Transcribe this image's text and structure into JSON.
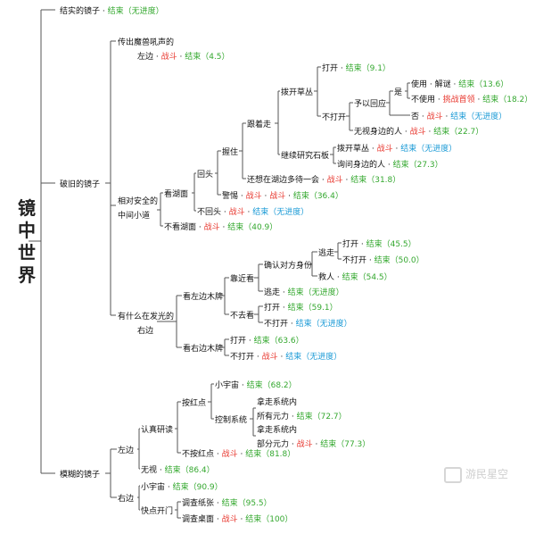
{
  "colors": {
    "neutral": "#111111",
    "fight": "#e8382f",
    "end": "#34a82f",
    "noprog": "#1a9ad6",
    "line": "#555555"
  },
  "icons": {
    "watermark": "logo-mark"
  },
  "map": {
    "root": "镜中世界",
    "watermark": "游民星空",
    "nodes": [
      {
        "id": "n1",
        "label": "结实的镜子",
        "tail": [
          [
            "end",
            "结束（无进度）"
          ]
        ]
      },
      {
        "id": "n2",
        "label": "破旧的镜子"
      },
      {
        "id": "n3",
        "label": "模糊的镜子"
      },
      {
        "id": "n4",
        "label": "传出魔兽吼声的"
      },
      {
        "id": "n4b",
        "label": "左边",
        "tail": [
          [
            "fight",
            "战斗"
          ],
          [
            "end",
            "结束（4.5）"
          ]
        ]
      },
      {
        "id": "n5a",
        "label": "相对安全的"
      },
      {
        "id": "n5b",
        "label": "中间小道"
      },
      {
        "id": "n6a",
        "label": "有什么在发光的"
      },
      {
        "id": "n6b",
        "label": "右边"
      },
      {
        "id": "n7",
        "label": "看湖面"
      },
      {
        "id": "n8",
        "label": "不看湖面",
        "tail": [
          [
            "fight",
            "战斗"
          ],
          [
            "end",
            "结束（40.9）"
          ]
        ]
      },
      {
        "id": "n9",
        "label": "回头"
      },
      {
        "id": "n10",
        "label": "不回头",
        "tail": [
          [
            "fight",
            "战斗"
          ],
          [
            "noprog",
            "结束（无进度）"
          ]
        ]
      },
      {
        "id": "n11",
        "label": "握住"
      },
      {
        "id": "n12",
        "label": "警惕",
        "tail": [
          [
            "fight",
            "战斗"
          ],
          [
            "fight",
            "战斗"
          ],
          [
            "end",
            "结束（36.4）"
          ]
        ]
      },
      {
        "id": "n13",
        "label": "跟着走"
      },
      {
        "id": "n14",
        "label": "还想在湖边多待一会",
        "tail": [
          [
            "fight",
            "战斗"
          ],
          [
            "end",
            "结束（31.8）"
          ]
        ]
      },
      {
        "id": "n15",
        "label": "拨开草丛"
      },
      {
        "id": "n16",
        "label": "继续研究石板"
      },
      {
        "id": "n17",
        "label": "打开",
        "tail": [
          [
            "end",
            "结束（9.1）"
          ]
        ]
      },
      {
        "id": "n18",
        "label": "不打开"
      },
      {
        "id": "n19",
        "label": "予以回应"
      },
      {
        "id": "n20",
        "label": "无视身边的人",
        "tail": [
          [
            "fight",
            "战斗"
          ],
          [
            "end",
            "结束（22.7）"
          ]
        ]
      },
      {
        "id": "n21",
        "label": "是"
      },
      {
        "id": "n22",
        "label": "否",
        "tail": [
          [
            "fight",
            "战斗"
          ],
          [
            "noprog",
            "结束（无进度）"
          ]
        ]
      },
      {
        "id": "n23",
        "label": "使用",
        "tail": [
          [
            "neutral",
            "解谜"
          ],
          [
            "end",
            "结束（13.6）"
          ]
        ]
      },
      {
        "id": "n24",
        "label": "不使用",
        "tail": [
          [
            "fight",
            "挑战首领"
          ],
          [
            "end",
            "结束（18.2）"
          ]
        ]
      },
      {
        "id": "n25",
        "label": "拨开草丛",
        "tail": [
          [
            "fight",
            "战斗"
          ],
          [
            "noprog",
            "结束（无进度）"
          ]
        ]
      },
      {
        "id": "n26",
        "label": "询问身边的人",
        "tail": [
          [
            "end",
            "结束（27.3）"
          ]
        ]
      },
      {
        "id": "n27",
        "label": "看左边木牌"
      },
      {
        "id": "n28",
        "label": "看右边木牌"
      },
      {
        "id": "n29",
        "label": "靠近看"
      },
      {
        "id": "n30",
        "label": "不去看"
      },
      {
        "id": "n31",
        "label": "确认对方身份"
      },
      {
        "id": "n32",
        "label": "逃走",
        "tail": [
          [
            "end",
            "结束（无进度）"
          ]
        ]
      },
      {
        "id": "n33",
        "label": "逃走"
      },
      {
        "id": "n34",
        "label": "救人",
        "tail": [
          [
            "end",
            "结束（54.5）"
          ]
        ]
      },
      {
        "id": "n35",
        "label": "打开",
        "tail": [
          [
            "end",
            "结束（45.5）"
          ]
        ]
      },
      {
        "id": "n36",
        "label": "不打开",
        "tail": [
          [
            "end",
            "结束（50.0）"
          ]
        ]
      },
      {
        "id": "n37",
        "label": "打开",
        "tail": [
          [
            "end",
            "结束（59.1）"
          ]
        ]
      },
      {
        "id": "n38",
        "label": "不打开",
        "tail": [
          [
            "noprog",
            "结束（无进度）"
          ]
        ]
      },
      {
        "id": "n39",
        "label": "打开",
        "tail": [
          [
            "end",
            "结束（63.6）"
          ]
        ]
      },
      {
        "id": "n40",
        "label": "不打开",
        "tail": [
          [
            "fight",
            "战斗"
          ],
          [
            "noprog",
            "结束（无进度）"
          ]
        ]
      },
      {
        "id": "n41",
        "label": "左边"
      },
      {
        "id": "n42",
        "label": "右边"
      },
      {
        "id": "n43",
        "label": "认真研读"
      },
      {
        "id": "n44",
        "label": "无视",
        "tail": [
          [
            "end",
            "结束（86.4）"
          ]
        ]
      },
      {
        "id": "n45",
        "label": "按红点"
      },
      {
        "id": "n46",
        "label": "不按红点",
        "tail": [
          [
            "fight",
            "战斗"
          ],
          [
            "end",
            "结束（81.8）"
          ]
        ]
      },
      {
        "id": "n47",
        "label": "小宇宙",
        "tail": [
          [
            "end",
            "结束（68.2）"
          ]
        ]
      },
      {
        "id": "n48",
        "label": "控制系统"
      },
      {
        "id": "n49a",
        "label": "拿走系统内"
      },
      {
        "id": "n49b",
        "label": "所有元力",
        "tail": [
          [
            "end",
            "结束（72.7）"
          ]
        ]
      },
      {
        "id": "n50a",
        "label": "拿走系统内"
      },
      {
        "id": "n50b",
        "label": "部分元力",
        "tail": [
          [
            "fight",
            "战斗"
          ],
          [
            "end",
            "结束（77.3）"
          ]
        ]
      },
      {
        "id": "n51",
        "label": "小宇宙",
        "tail": [
          [
            "end",
            "结束（90.9）"
          ]
        ]
      },
      {
        "id": "n52",
        "label": "快点开门"
      },
      {
        "id": "n53",
        "label": "调查纸张",
        "tail": [
          [
            "end",
            "结束（95.5）"
          ]
        ]
      },
      {
        "id": "n54",
        "label": "调查桌面",
        "tail": [
          [
            "fight",
            "战斗"
          ],
          [
            "end",
            "结束（100）"
          ]
        ]
      }
    ]
  }
}
